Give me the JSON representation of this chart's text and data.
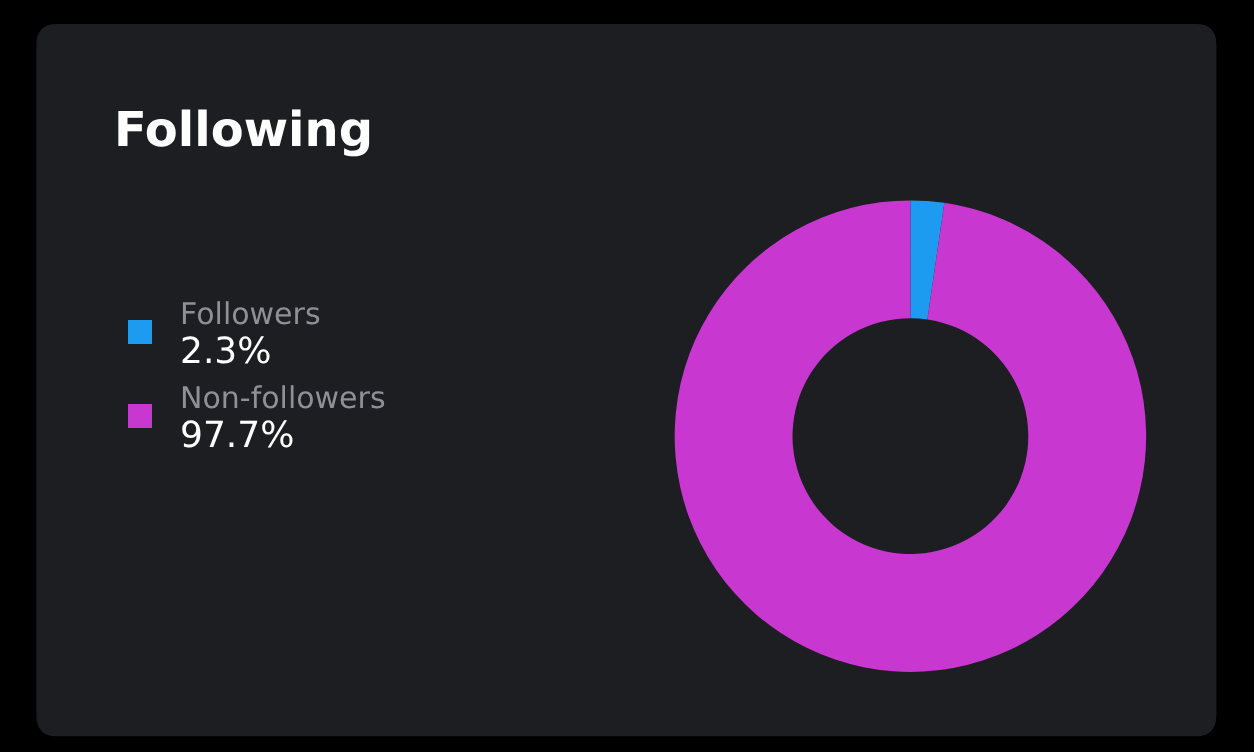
{
  "chart_data": {
    "type": "donut",
    "title": "Following",
    "categories": [
      "Followers",
      "Non-followers"
    ],
    "values": [
      2.3,
      97.7
    ],
    "colors": [
      "#1d9bf0",
      "#c837cf"
    ],
    "value_labels": [
      "2.3%",
      "97.7%"
    ],
    "legend": "left"
  }
}
